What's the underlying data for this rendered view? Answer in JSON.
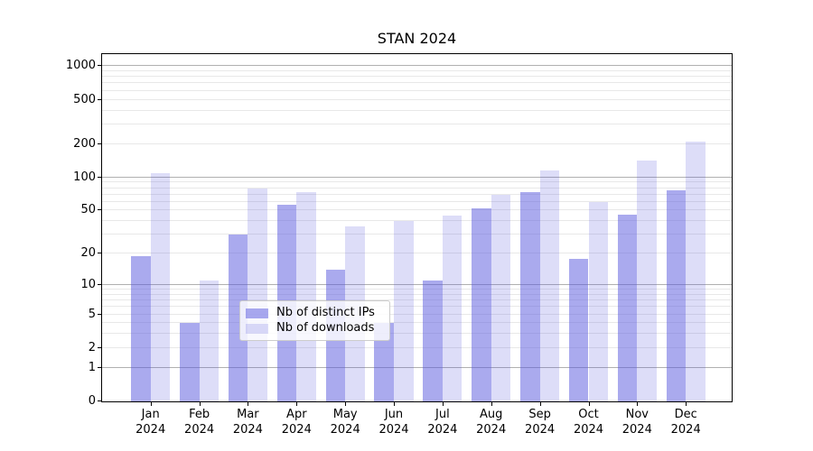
{
  "title": "STAN 2024",
  "chart_data": {
    "type": "bar",
    "title": "STAN 2024",
    "xlabel": "",
    "ylabel": "",
    "yscale": "log1p",
    "ylim": [
      0,
      1280
    ],
    "yticks": [
      0,
      1,
      2,
      5,
      10,
      20,
      50,
      100,
      200,
      500,
      1000
    ],
    "major_gridlines": [
      1,
      10,
      100,
      1000
    ],
    "grid": "horizontal",
    "legend_position": "lower center",
    "categories": [
      "Jan 2024",
      "Feb 2024",
      "Mar 2024",
      "Apr 2024",
      "May 2024",
      "Jun 2024",
      "Jul 2024",
      "Aug 2024",
      "Sep 2024",
      "Oct 2024",
      "Nov 2024",
      "Dec 2024"
    ],
    "series": [
      {
        "name": "Nb of distinct IPs",
        "color": "rgba(85,85,221,0.5)",
        "values": [
          19,
          4,
          30,
          57,
          14,
          4,
          11,
          52,
          73,
          18,
          46,
          76
        ]
      },
      {
        "name": "Nb of downloads",
        "color": "rgba(85,85,221,0.2)",
        "values": [
          110,
          11,
          80,
          74,
          36,
          40,
          45,
          70,
          115,
          60,
          142,
          212
        ]
      }
    ]
  },
  "colors": {
    "grid_major": "#b0b0b0",
    "grid_minor": "#e8e8e8",
    "spine": "#000000",
    "legend_border": "#cccccc",
    "legend_background": "rgba(255,255,255,0.8)",
    "text": "#000000"
  }
}
